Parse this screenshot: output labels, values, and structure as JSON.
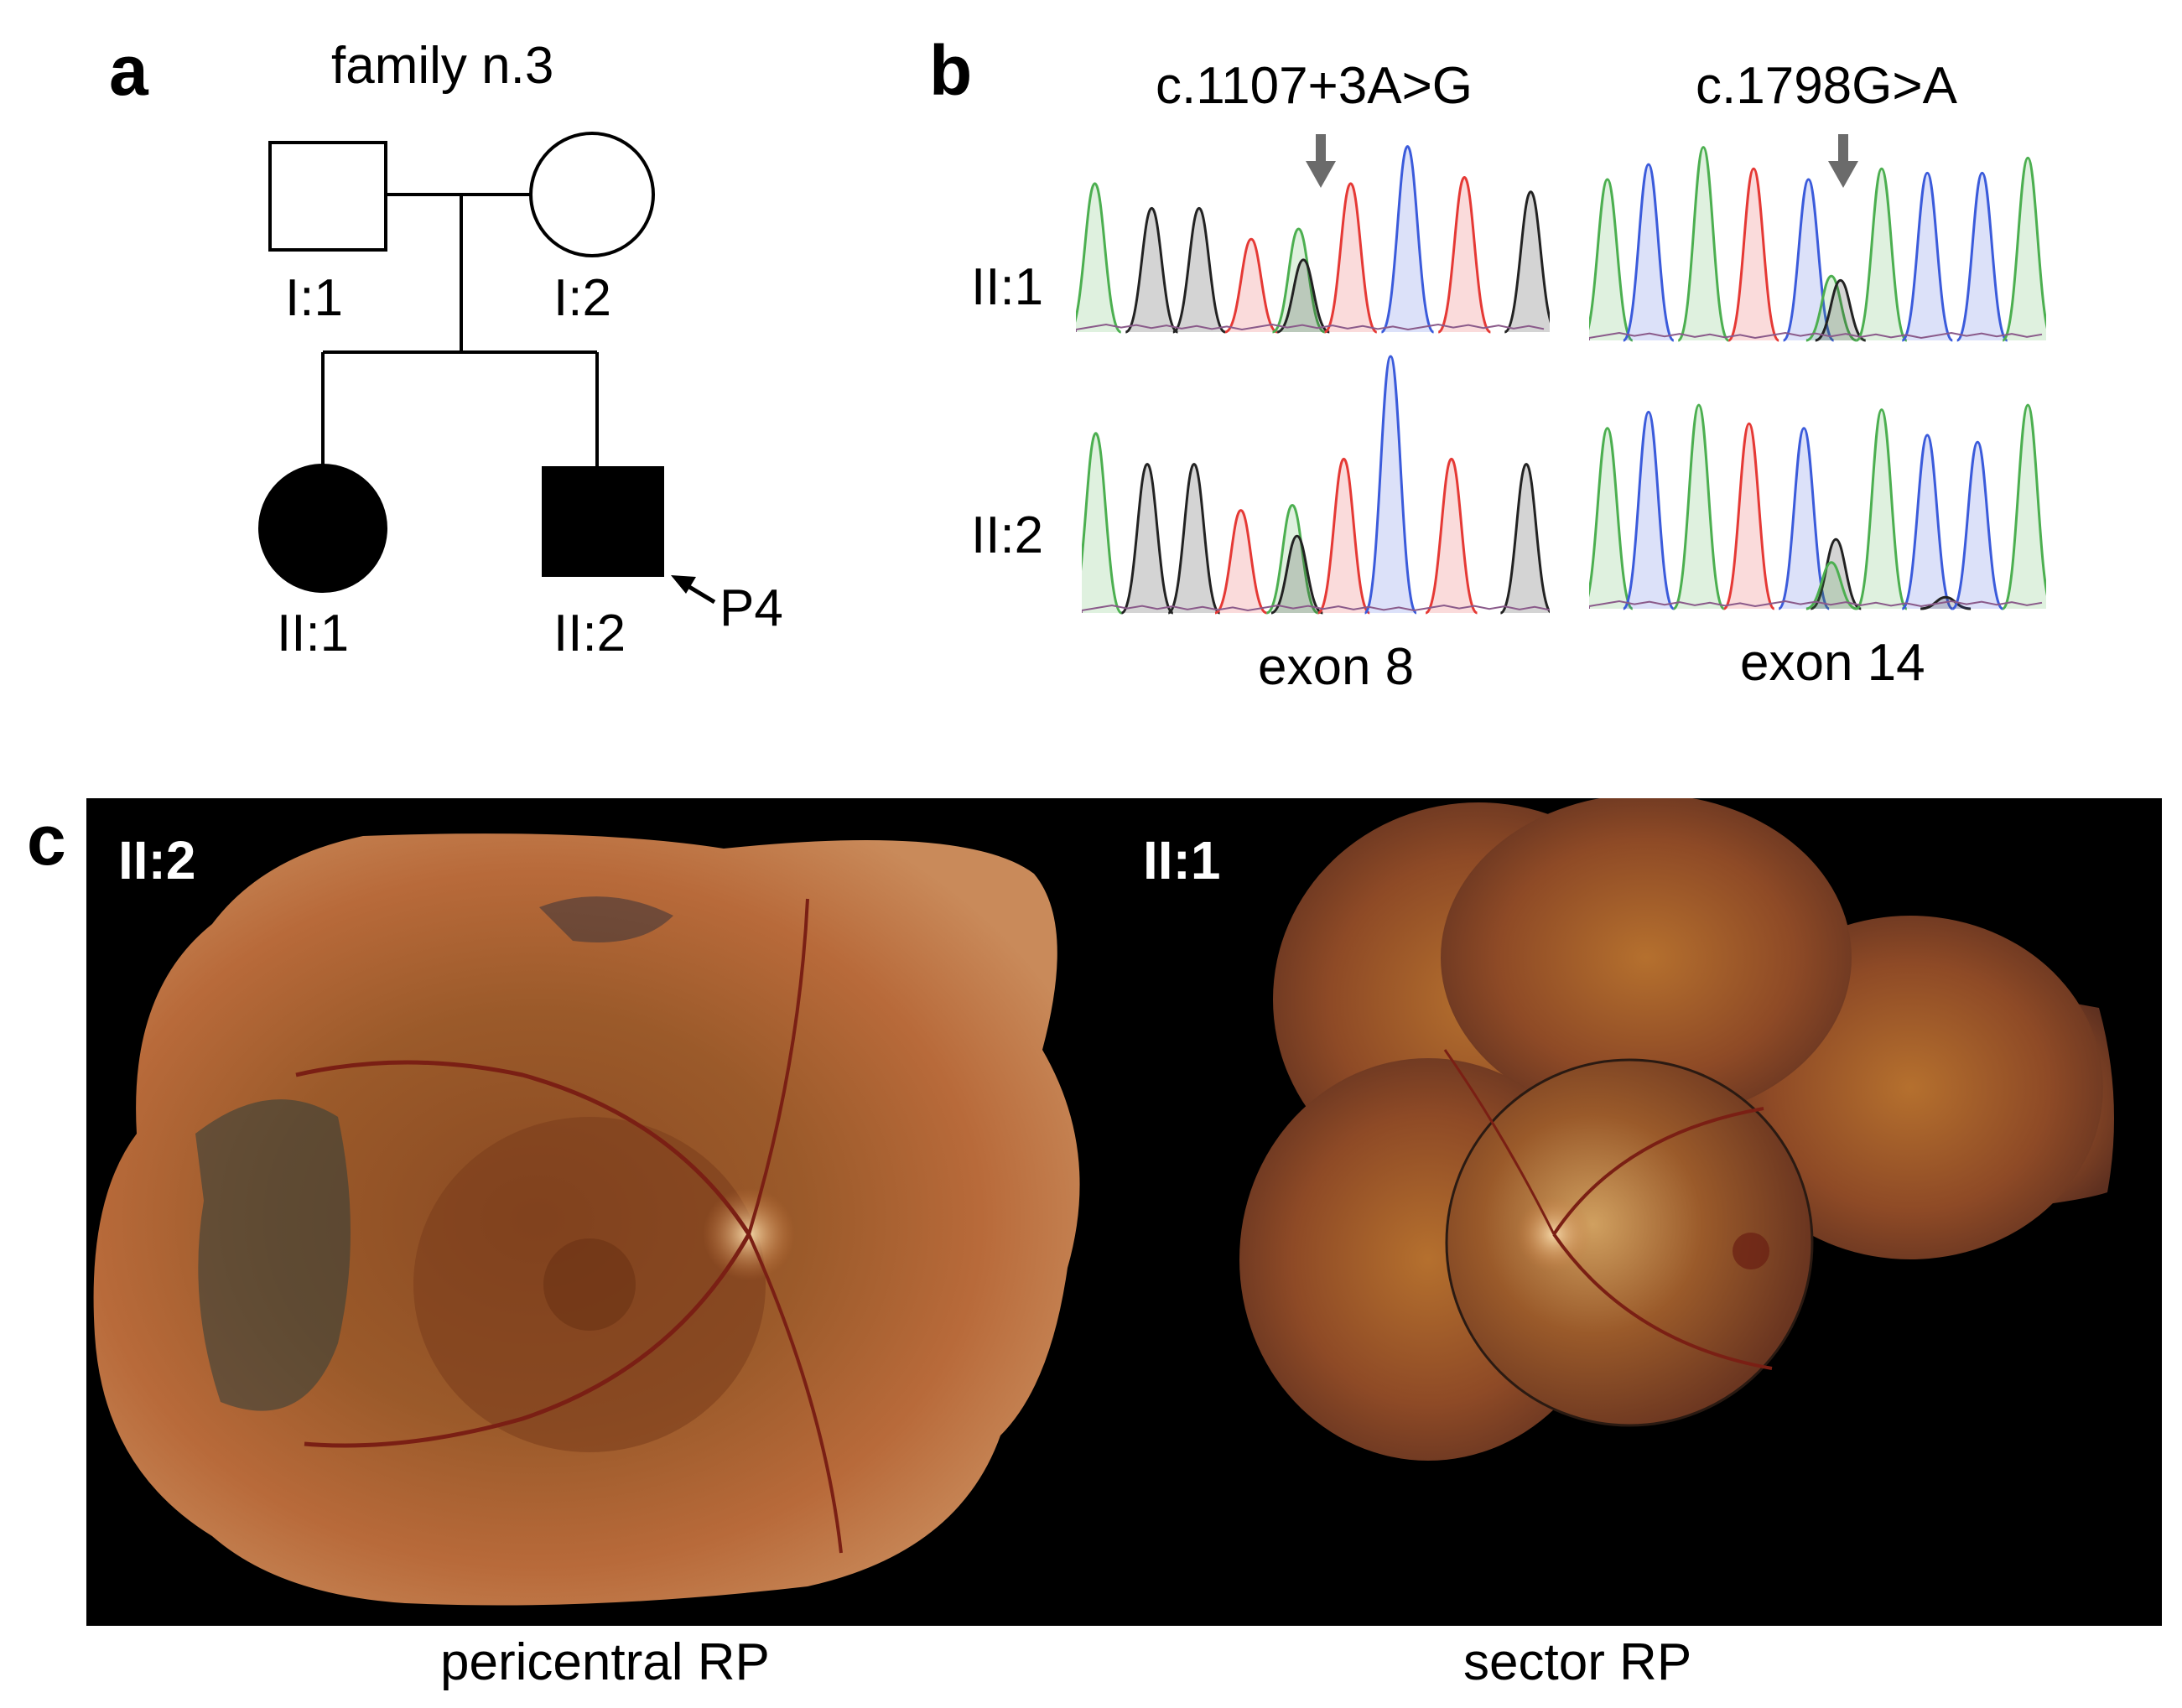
{
  "panel_a": {
    "letter": "a",
    "title": "family n.3",
    "individuals": {
      "I1": "I:1",
      "I2": "I:2",
      "II1": "II:1",
      "II2": "II:2"
    },
    "proband_label": "P4"
  },
  "panel_b": {
    "letter": "b",
    "variant_left": "c.1107+3A>G",
    "variant_right": "c.1798G>A",
    "row_labels": [
      "II:1",
      "II:2"
    ],
    "exon_left": "exon 8",
    "exon_right": "exon 14",
    "trace_colors": {
      "A": "#4caf50",
      "C": "#3b5bdb",
      "G": "#222222",
      "T": "#e53935"
    }
  },
  "panel_c": {
    "letter": "c",
    "left_label": "II:2",
    "right_label": "II:1",
    "caption_left": "pericentral RP",
    "caption_right": "sector RP"
  }
}
